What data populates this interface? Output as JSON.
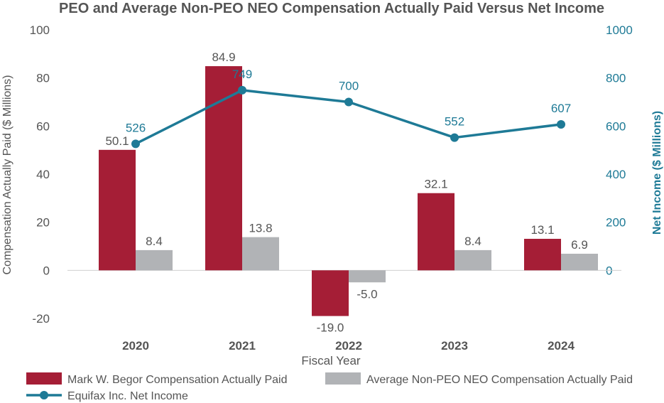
{
  "chart_data": {
    "type": "bar+line",
    "title": "PEO and Average Non-PEO NEO Compensation Actually Paid Versus Net Income",
    "categories": [
      "2020",
      "2021",
      "2022",
      "2023",
      "2024"
    ],
    "xlabel": "Fiscal Year",
    "ylabel_left": "Compensation Actually Paid ($ Millions)",
    "ylabel_right": "Net Income ($ Millions)",
    "ylim_left": [
      -20,
      100
    ],
    "yticks_left": [
      "-20",
      "0",
      "20",
      "40",
      "60",
      "80",
      "100"
    ],
    "ylim_right": [
      -200,
      1000
    ],
    "yticks_right": [
      "0",
      "200",
      "400",
      "600",
      "800",
      "1000"
    ],
    "series": [
      {
        "name": "Mark W. Begor Compensation Actually Paid",
        "type": "bar",
        "axis": "left",
        "color": "#a51e36",
        "values": [
          50.1,
          84.9,
          -19.0,
          32.1,
          13.1
        ],
        "labels": [
          "50.1",
          "84.9",
          "-19.0",
          "32.1",
          "13.1"
        ]
      },
      {
        "name": "Average Non-PEO NEO Compensation Actually Paid",
        "type": "bar",
        "axis": "left",
        "color": "#b1b3b6",
        "values": [
          8.4,
          13.8,
          -5.0,
          8.4,
          6.9
        ],
        "labels": [
          "8.4",
          "13.8",
          "-5.0",
          "8.4",
          "6.9"
        ]
      },
      {
        "name": "Equifax Inc. Net Income",
        "type": "line",
        "axis": "right",
        "color": "#1e7a96",
        "values": [
          526,
          749,
          700,
          552,
          607
        ],
        "labels": [
          "526",
          "749",
          "700",
          "552",
          "607"
        ]
      }
    ],
    "legend": "bottom"
  }
}
